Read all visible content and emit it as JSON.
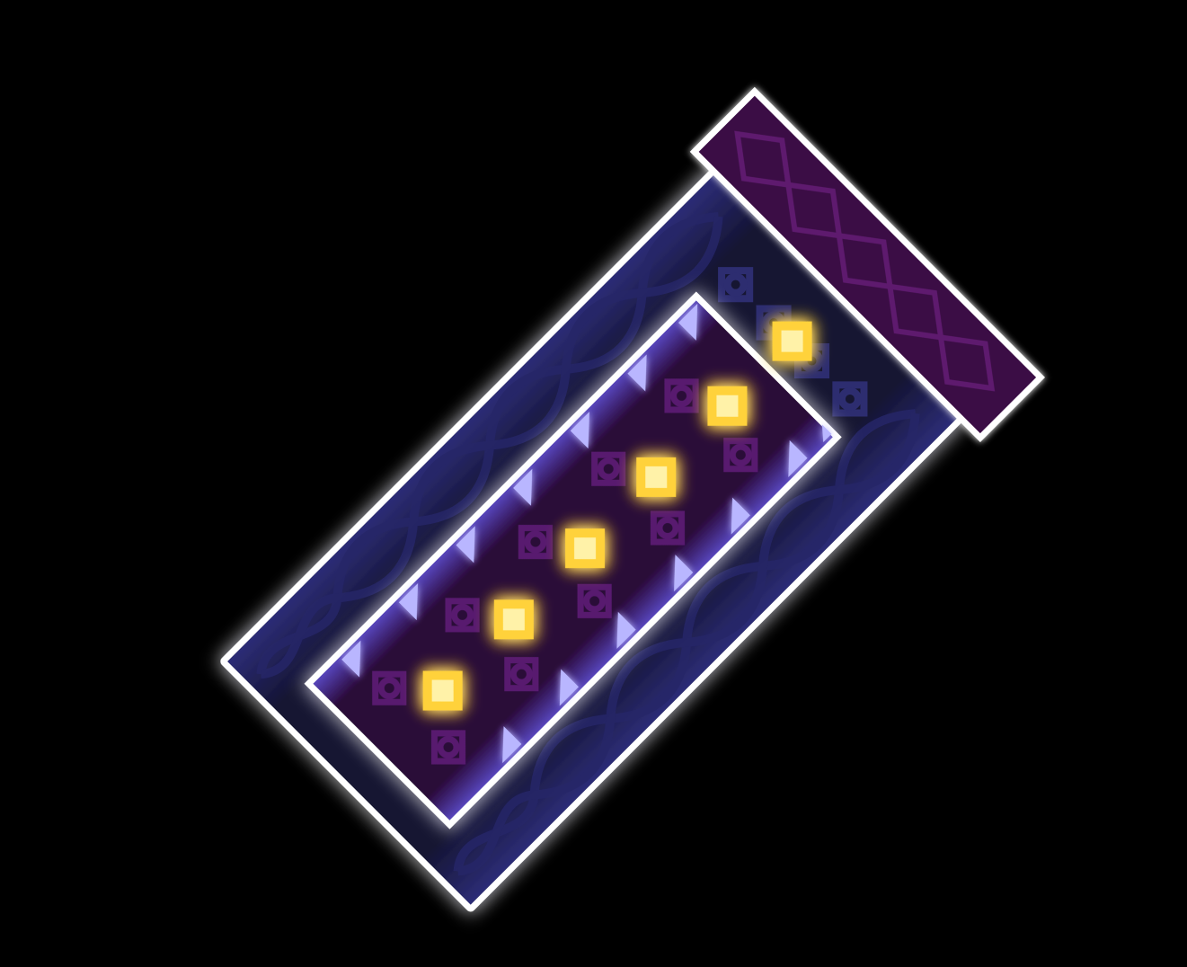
{
  "scene": {
    "name": "neon-level-block",
    "background_color": "#000000"
  },
  "colors": {
    "outline": "#ffffff",
    "outer_fill": "#141433",
    "outer_glow": "#5a5aff",
    "rail_line": "#6b6bff",
    "inner_fill": "#2a0838",
    "inner_glow": "#8a7cff",
    "cap_fill": "#3a0a45",
    "cap_pattern": "#5e1a6e",
    "spike": "#b9b6ff",
    "core_line": "#ffe066",
    "gem": "#ffd23a",
    "gem_glow": "#ff9a1a",
    "ring_pattern": "#6a1e86",
    "wave_pattern": "#242463"
  },
  "elements": {
    "gem_count": 6,
    "spike_rows": 2,
    "spikes_per_row": 7,
    "cap_diamond_count": 5,
    "ring_decor_count": 10
  }
}
